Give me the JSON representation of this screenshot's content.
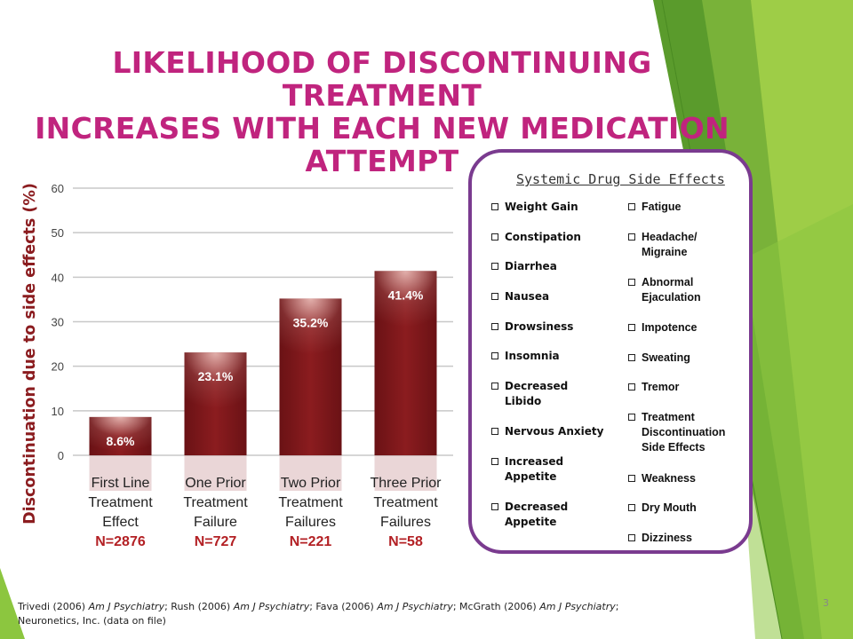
{
  "slide": {
    "title_line1": "LIKELIHOOD OF DISCONTINUING TREATMENT",
    "title_line2": "INCREASES WITH EACH NEW MEDICATION ATTEMPT",
    "page_number": "3",
    "citation": {
      "a1": "Trivedi (2006)",
      "j1": "Am J Psychiatry",
      "a2": "; Rush (2006)",
      "j2": "Am J Psychiatry",
      "a3": "; Fava (2006)",
      "j3": "Am J Psychiatry",
      "a4": "; McGrath (2006)",
      "j4": "Am J Psychiatry",
      "a5": "; Neuronetics, Inc. (data on file)"
    }
  },
  "chart_data": {
    "type": "bar",
    "ylabel": "Discontinuation due to side effects (%)",
    "ylim": [
      0,
      60
    ],
    "yticks": [
      "0",
      "10",
      "20",
      "30",
      "40",
      "50",
      "60"
    ],
    "grid": true,
    "categories": [
      [
        "First Line",
        "Treatment",
        "Effect"
      ],
      [
        "One Prior",
        "Treatment",
        "Failure"
      ],
      [
        "Two Prior",
        "Treatment",
        "Failures"
      ],
      [
        "Three Prior",
        "Treatment",
        "Failures"
      ]
    ],
    "sample_sizes": [
      "N=2876",
      "N=727",
      "N=221",
      "N=58"
    ],
    "values": [
      8.6,
      23.1,
      35.2,
      41.4
    ],
    "data_labels": [
      "8.6%",
      "23.1%",
      "35.2%",
      "41.4%"
    ],
    "colors": {
      "bar": "#8b1c1f",
      "bar_highlight": "#e7b9b4",
      "n_label": "#b32024",
      "ylabel": "#8b1c1f",
      "grid": "#c8c8c8"
    }
  },
  "side_effects": {
    "title": "Systemic Drug Side Effects",
    "left": [
      "Weight Gain",
      "Constipation",
      "Diarrhea",
      "Nausea",
      "Drowsiness",
      "Insomnia",
      "Decreased\nLibido",
      "Nervous Anxiety",
      "Increased\nAppetite",
      "Decreased\nAppetite"
    ],
    "right": [
      "Fatigue",
      "Headache/\nMigraine",
      "Abnormal\nEjaculation",
      "Impotence",
      "Sweating",
      "Tremor",
      "Treatment\nDiscontinuation\nSide Effects",
      "Weakness",
      "Dry Mouth",
      "Dizziness"
    ]
  },
  "theme": {
    "title_color": "#c0247e",
    "panel_border": "#7a3b8f",
    "green_dark": "#5b9a2a",
    "green_light": "#9acd32"
  }
}
